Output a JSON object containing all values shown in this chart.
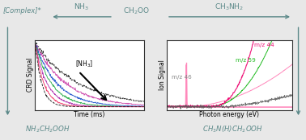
{
  "bg_color": "#e8e8e8",
  "text_color": "#5a8a8a",
  "panel_bg": "#f0f0f0",
  "title_nh3": "NH$_3$",
  "title_ch3nh2": "CH$_3$NH$_2$",
  "title_ch2oo": "CH$_2$OO",
  "label_complex": "[Complex]*",
  "label_nh3_inner": "[NH$_3$]",
  "label_nh2ch2ooh": "NH$_2$CH$_2$OOH",
  "label_ch3nch2ooh": "CH$_3$N(H)CH$_2$OOH",
  "left_xlabel": "Time (ms)",
  "left_ylabel": "CRD Signal",
  "right_xlabel": "Photon energy (eV)",
  "right_ylabel": "Ion Signal",
  "mz44_label": "m/z 44",
  "mz59_label": "m/z 59",
  "mz46_label": "m/z 46",
  "mz44_color": "#ee1177",
  "mz59_color": "#22bb22",
  "mz46_color": "#ff88bb",
  "dark_color": "#444444",
  "teal": "#5a8888"
}
